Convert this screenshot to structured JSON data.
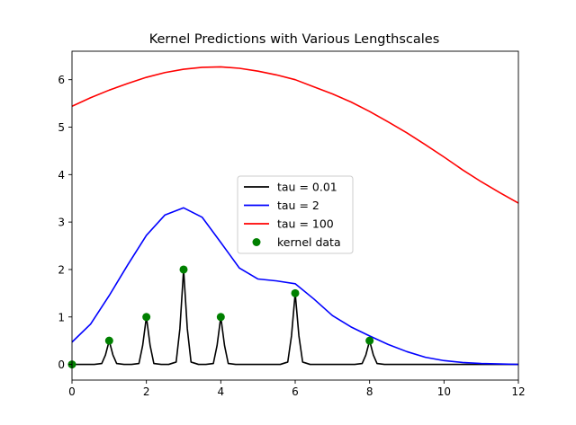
{
  "chart_data": {
    "type": "line",
    "title": "Kernel Predictions with Various Lengthscales",
    "xlabel": "",
    "ylabel": "",
    "xlim": [
      0,
      12
    ],
    "ylim": [
      -0.33,
      6.6
    ],
    "xticks": [
      0,
      2,
      4,
      6,
      8,
      10,
      12
    ],
    "yticks": [
      0,
      1,
      2,
      3,
      4,
      5,
      6
    ],
    "grid": false,
    "legend_placement": "center",
    "series": [
      {
        "name": "tau = 0.01",
        "color": "#000000",
        "x": [
          0,
          0.2,
          0.4,
          0.6,
          0.8,
          0.9,
          1.0,
          1.1,
          1.2,
          1.4,
          1.6,
          1.8,
          1.9,
          2.0,
          2.1,
          2.2,
          2.4,
          2.6,
          2.8,
          2.9,
          3.0,
          3.1,
          3.2,
          3.4,
          3.6,
          3.8,
          3.9,
          4.0,
          4.1,
          4.2,
          4.4,
          4.6,
          4.8,
          5.0,
          5.2,
          5.4,
          5.6,
          5.8,
          5.9,
          6.0,
          6.1,
          6.2,
          6.4,
          6.6,
          6.8,
          7.0,
          7.2,
          7.4,
          7.6,
          7.8,
          7.9,
          8.0,
          8.1,
          8.2,
          8.4,
          9,
          10,
          11,
          12
        ],
        "values": [
          0,
          0,
          0,
          0,
          0.02,
          0.2,
          0.5,
          0.2,
          0.02,
          0,
          0,
          0.02,
          0.4,
          1.0,
          0.4,
          0.02,
          0,
          0,
          0.05,
          0.75,
          2.0,
          0.75,
          0.05,
          0,
          0,
          0.02,
          0.4,
          1.0,
          0.4,
          0.02,
          0,
          0,
          0,
          0,
          0,
          0,
          0,
          0.05,
          0.6,
          1.5,
          0.6,
          0.05,
          0,
          0,
          0,
          0,
          0,
          0,
          0,
          0.02,
          0.2,
          0.5,
          0.2,
          0.02,
          0,
          0,
          0,
          0,
          0
        ]
      },
      {
        "name": "tau = 2",
        "color": "#0000ff",
        "x": [
          0,
          0.5,
          1,
          1.5,
          2,
          2.5,
          3,
          3.5,
          4,
          4.5,
          5,
          5.5,
          6,
          6.5,
          7,
          7.5,
          8,
          8.5,
          9,
          9.5,
          10,
          10.5,
          11,
          11.5,
          12
        ],
        "values": [
          0.47,
          0.85,
          1.45,
          2.1,
          2.72,
          3.15,
          3.3,
          3.1,
          2.57,
          2.03,
          1.8,
          1.76,
          1.7,
          1.38,
          1.03,
          0.79,
          0.6,
          0.42,
          0.27,
          0.15,
          0.08,
          0.04,
          0.02,
          0.01,
          0.0
        ]
      },
      {
        "name": "tau = 100",
        "color": "#ff0000",
        "x": [
          0,
          0.5,
          1,
          1.5,
          2,
          2.5,
          3,
          3.5,
          4,
          4.5,
          5,
          5.5,
          6,
          6.5,
          7,
          7.5,
          8,
          8.5,
          9,
          9.5,
          10,
          10.5,
          11,
          11.5,
          12
        ],
        "values": [
          5.44,
          5.62,
          5.78,
          5.92,
          6.05,
          6.15,
          6.22,
          6.26,
          6.27,
          6.24,
          6.18,
          6.1,
          6.0,
          5.85,
          5.7,
          5.53,
          5.33,
          5.11,
          4.88,
          4.63,
          4.37,
          4.1,
          3.85,
          3.62,
          3.4
        ]
      }
    ],
    "scatter": {
      "name": "kernel data",
      "color": "#008000",
      "x": [
        0,
        1,
        2,
        3,
        4,
        6,
        8
      ],
      "y": [
        0,
        0.5,
        1.0,
        2.0,
        1.0,
        1.5,
        0.5
      ]
    }
  }
}
